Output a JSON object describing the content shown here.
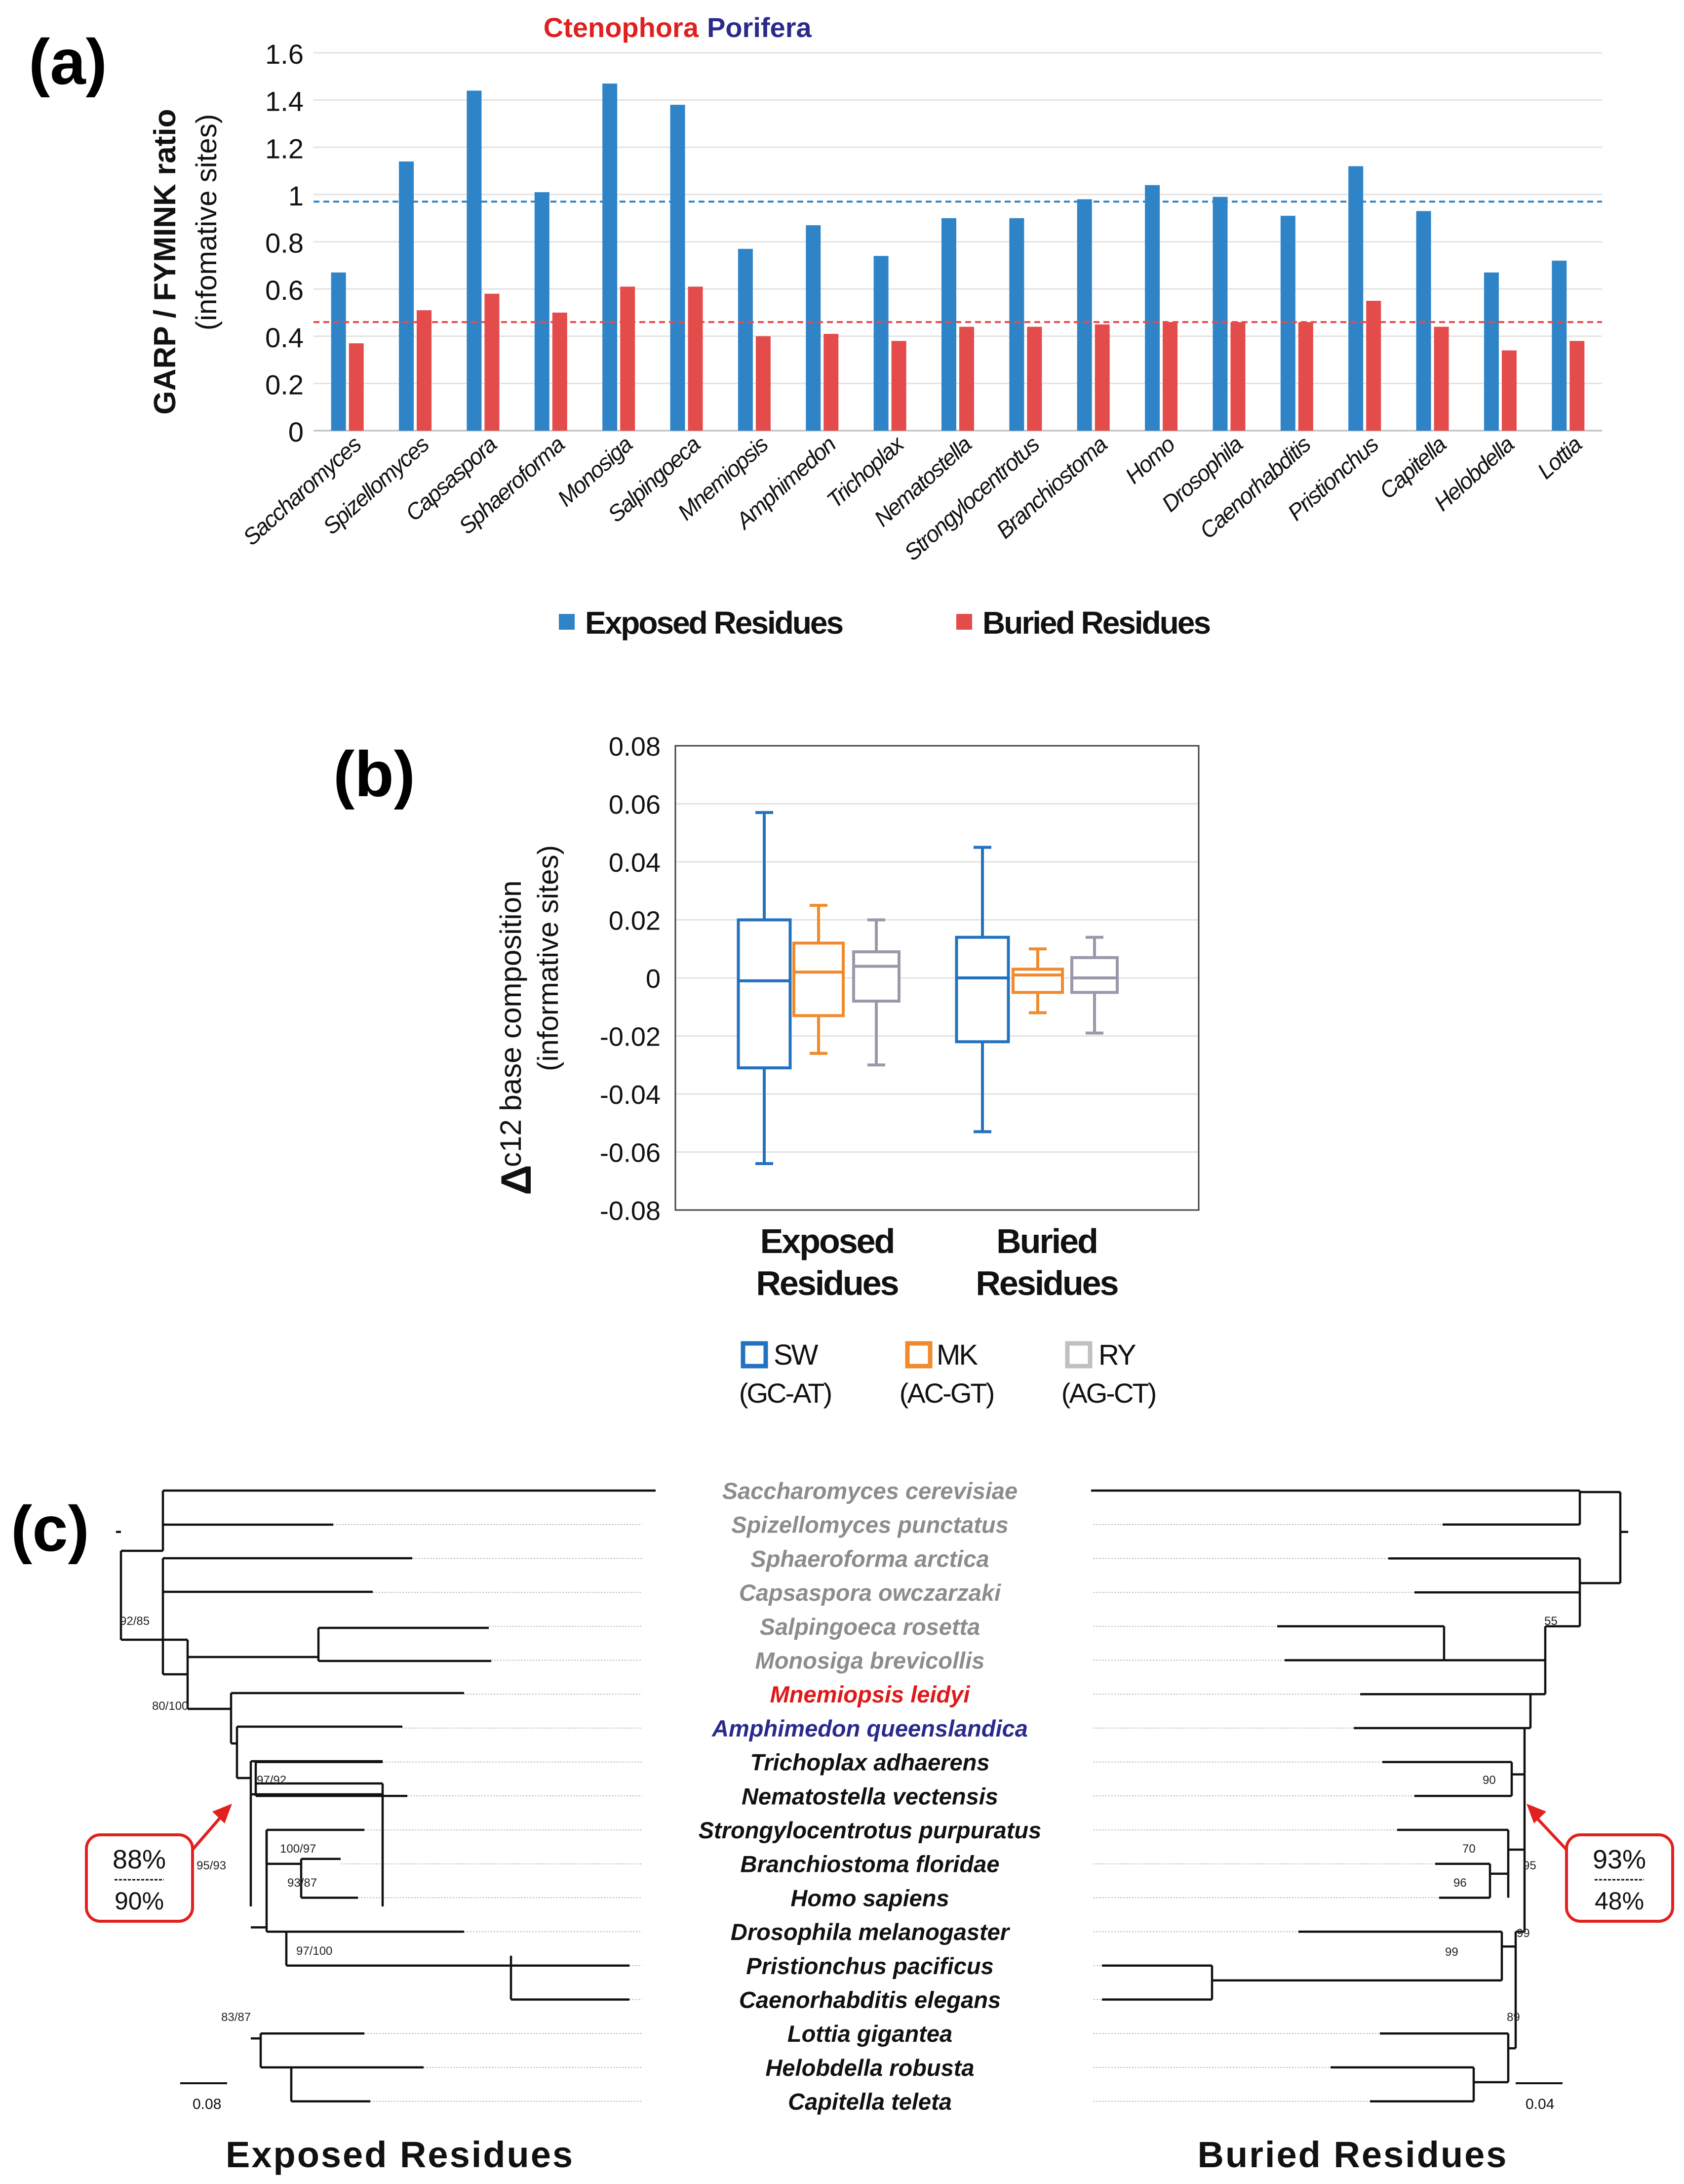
{
  "figure": {
    "panel_a": "(a)",
    "panel_b": "(b)",
    "panel_c": "(c)"
  },
  "chart_data": [
    {
      "type": "bar",
      "title_left": "Ctenophora",
      "title_right": "Porifera",
      "ylabel": "GARP / FYMINK ratio",
      "ylabel2": "(infomative sites)",
      "ylim": [
        0,
        1.6
      ],
      "yticks": [
        "0",
        "0.2",
        "0.4",
        "0.6",
        "0.8",
        "1",
        "1.2",
        "1.4",
        "1.6"
      ],
      "categories": [
        "Saccharomyces",
        "Spizellomyces",
        "Capsaspora",
        "Sphaeroforma",
        "Monosiga",
        "Salpingoeca",
        "Mnemiopsis",
        "Amphimedon",
        "Trichoplax",
        "Nematostella",
        "Strongylocentrotus",
        "Branchiostoma",
        "Homo",
        "Drosophila",
        "Caenorhabditis",
        "Pristionchus",
        "Capitella",
        "Helobdella",
        "Lottia"
      ],
      "series": [
        {
          "name": "Exposed Residues",
          "color": "#2f84c8",
          "values": [
            0.67,
            1.14,
            1.44,
            1.01,
            1.47,
            1.38,
            0.77,
            0.87,
            0.74,
            0.9,
            0.9,
            0.98,
            1.04,
            0.99,
            0.91,
            1.12,
            0.93,
            0.67,
            0.72
          ]
        },
        {
          "name": "Buried Residues",
          "color": "#e44b4b",
          "values": [
            0.37,
            0.51,
            0.58,
            0.5,
            0.61,
            0.61,
            0.4,
            0.41,
            0.38,
            0.44,
            0.44,
            0.45,
            0.46,
            0.46,
            0.46,
            0.55,
            0.44,
            0.34,
            0.38
          ]
        }
      ],
      "reference_lines": [
        {
          "series": "Exposed Residues",
          "value": 0.97,
          "color": "#2f84c8"
        },
        {
          "series": "Buried Residues",
          "value": 0.46,
          "color": "#e44b4b"
        }
      ]
    },
    {
      "type": "box",
      "ylabel_symbol": "Δ",
      "ylabel": "c12 base composition",
      "ylabel2": "(informative sites)",
      "ylim": [
        -0.08,
        0.08
      ],
      "yticks": [
        "-0.08",
        "-0.06",
        "-0.04",
        "-0.02",
        "0",
        "0.02",
        "0.04",
        "0.06",
        "0.08"
      ],
      "groups": [
        {
          "label1": "Exposed",
          "label2": "Residues"
        },
        {
          "label1": "Buried",
          "label2": "Residues"
        }
      ],
      "series": [
        {
          "name": "SW",
          "sub": "(GC-AT)",
          "color": "#2372c0",
          "boxes": [
            {
              "min": -0.064,
              "q1": -0.031,
              "median": -0.001,
              "q3": 0.02,
              "max": 0.057
            },
            {
              "min": -0.053,
              "q1": -0.022,
              "median": 0.0,
              "q3": 0.014,
              "max": 0.045
            }
          ]
        },
        {
          "name": "MK",
          "sub": "(AC-GT)",
          "color": "#f08a2c",
          "boxes": [
            {
              "min": -0.026,
              "q1": -0.013,
              "median": 0.002,
              "q3": 0.012,
              "max": 0.025
            },
            {
              "min": -0.012,
              "q1": -0.005,
              "median": 0.001,
              "q3": 0.003,
              "max": 0.01
            }
          ]
        },
        {
          "name": "RY",
          "sub": "(AG-CT)",
          "color": "#9c97a9",
          "boxes": [
            {
              "min": -0.03,
              "q1": -0.008,
              "median": 0.004,
              "q3": 0.009,
              "max": 0.02
            },
            {
              "min": -0.019,
              "q1": -0.005,
              "median": 0.0,
              "q3": 0.007,
              "max": 0.014
            }
          ]
        }
      ]
    }
  ],
  "trees": {
    "taxa": [
      {
        "name": "Saccharomyces cerevisiae",
        "color": "#8c8c8c"
      },
      {
        "name": "Spizellomyces punctatus",
        "color": "#8c8c8c"
      },
      {
        "name": "Sphaeroforma arctica",
        "color": "#8c8c8c"
      },
      {
        "name": "Capsaspora owczarzaki",
        "color": "#8c8c8c"
      },
      {
        "name": "Salpingoeca rosetta",
        "color": "#8c8c8c"
      },
      {
        "name": "Monosiga brevicollis",
        "color": "#8c8c8c"
      },
      {
        "name": "Mnemiopsis leidyi",
        "color": "#e01818"
      },
      {
        "name": "Amphimedon queenslandica",
        "color": "#2a2a8c"
      },
      {
        "name": "Trichoplax adhaerens",
        "color": "#111111"
      },
      {
        "name": "Nematostella vectensis",
        "color": "#111111"
      },
      {
        "name": "Strongylocentrotus purpuratus",
        "color": "#111111"
      },
      {
        "name": "Branchiostoma floridae",
        "color": "#111111"
      },
      {
        "name": "Homo sapiens",
        "color": "#111111"
      },
      {
        "name": "Drosophila melanogaster",
        "color": "#111111"
      },
      {
        "name": "Pristionchus pacificus",
        "color": "#111111"
      },
      {
        "name": "Caenorhabditis elegans",
        "color": "#111111"
      },
      {
        "name": "Lottia gigantea",
        "color": "#111111"
      },
      {
        "name": "Helobdella robusta",
        "color": "#111111"
      },
      {
        "name": "Capitella teleta",
        "color": "#111111"
      }
    ],
    "left": {
      "title": "Exposed Residues",
      "scale": "0.08",
      "supports": [
        "92/85",
        "80/100",
        "97/92",
        "95/93",
        "100/97",
        "93/87",
        "97/100",
        "83/87"
      ],
      "callout_top": "88%",
      "callout_bottom": "90%"
    },
    "right": {
      "title": "Buried Residues",
      "scale": "0.04",
      "supports": [
        "55",
        "90",
        "70",
        "96",
        "95",
        "99",
        "99",
        "89"
      ],
      "callout_top": "93%",
      "callout_bottom": "48%"
    }
  }
}
